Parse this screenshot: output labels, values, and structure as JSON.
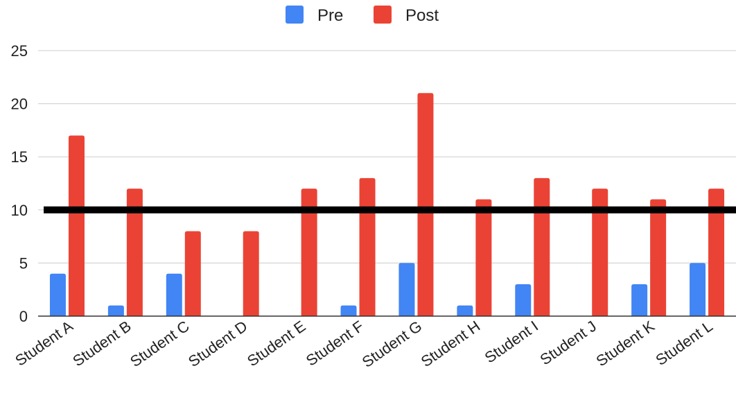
{
  "chart_data": {
    "type": "bar",
    "title": "",
    "xlabel": "",
    "ylabel": "",
    "categories": [
      "Student A",
      "Student B",
      "Student C",
      "Student D",
      "Student E",
      "Student F",
      "Student G",
      "Student H",
      "Student I",
      "Student J",
      "Student K",
      "Student L"
    ],
    "series": [
      {
        "name": "Pre",
        "color": "#4285F4",
        "values": [
          4,
          1,
          4,
          0,
          0,
          1,
          5,
          1,
          3,
          0,
          3,
          5
        ]
      },
      {
        "name": "Post",
        "color": "#EA4335",
        "values": [
          17,
          12,
          8,
          8,
          12,
          13,
          21,
          11,
          13,
          12,
          11,
          12
        ]
      }
    ],
    "ylim": [
      0,
      25
    ],
    "yticks": [
      0,
      5,
      10,
      15,
      20,
      25
    ],
    "grid": true,
    "legend": "top-center",
    "reference_line": {
      "y": 10,
      "color": "#000000"
    }
  }
}
